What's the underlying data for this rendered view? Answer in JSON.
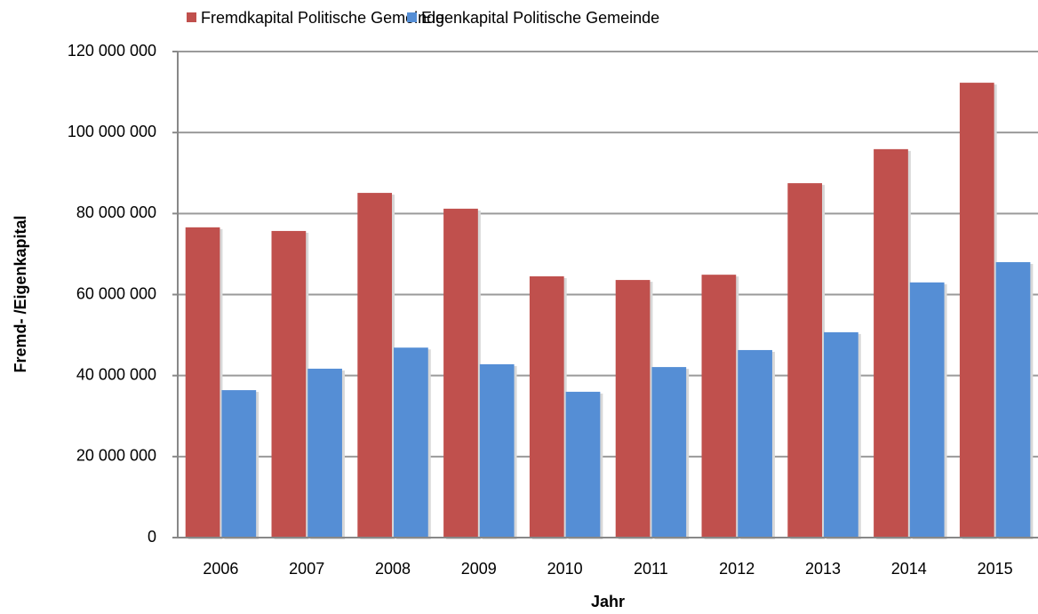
{
  "chart_data": {
    "type": "bar",
    "x_label": "Jahr",
    "y_label": "Fremd- /Eigenkapital",
    "categories": [
      "2006",
      "2007",
      "2008",
      "2009",
      "2010",
      "2011",
      "2012",
      "2013",
      "2014",
      "2015"
    ],
    "series": [
      {
        "name": "Fremdkapital Politische Gemeinde",
        "color": "#c0504d",
        "values": [
          76600000,
          75700000,
          85100000,
          81200000,
          64500000,
          63600000,
          64900000,
          87500000,
          95900000,
          112300000
        ]
      },
      {
        "name": "Eigenkapital Politische Gemeinde",
        "color": "#558ed5",
        "values": [
          36400000,
          41700000,
          46900000,
          42800000,
          36000000,
          42100000,
          46300000,
          50700000,
          63000000,
          68000000
        ]
      }
    ],
    "ylim": [
      0,
      120000000
    ],
    "yticks": [
      0,
      {
        "value": 20000000,
        "label": "20 000 000"
      },
      {
        "value": 40000000,
        "label": "40 000 000"
      },
      {
        "value": 60000000,
        "label": "60 000 000"
      },
      {
        "value": 80000000,
        "label": "80 000 000"
      },
      {
        "value": 100000000,
        "label": "100 000 000"
      },
      {
        "value": 120000000,
        "label": "120 000 000"
      }
    ],
    "grid": true,
    "legend": "top"
  }
}
